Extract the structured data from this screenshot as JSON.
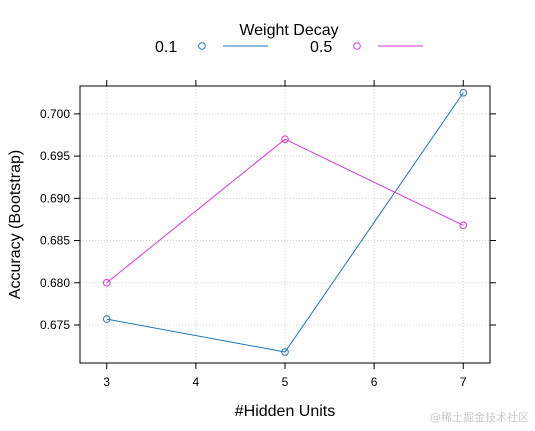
{
  "chart_data": {
    "type": "line",
    "title": "",
    "xlabel": "#Hidden Units",
    "ylabel": "Accuracy (Bootstrap)",
    "legend": {
      "title": "Weight Decay",
      "position": "top"
    },
    "x": [
      3,
      5,
      7
    ],
    "x_ticks": [
      "3",
      "4",
      "5",
      "6",
      "7"
    ],
    "y_ticks": [
      "0.675",
      "0.680",
      "0.685",
      "0.690",
      "0.695",
      "0.700"
    ],
    "xlim": [
      2.7,
      7.3
    ],
    "ylim": [
      0.6705,
      0.7033
    ],
    "grid": true,
    "series": [
      {
        "name": "0.1",
        "color": "#1f77b4",
        "marker": "circle",
        "values": [
          0.6757,
          0.6718,
          0.7025
        ]
      },
      {
        "name": "0.5",
        "color": "#e033d8",
        "marker": "circle",
        "values": [
          0.68,
          0.697,
          0.6868
        ]
      }
    ]
  },
  "watermark": "@稀土掘金技术社区"
}
